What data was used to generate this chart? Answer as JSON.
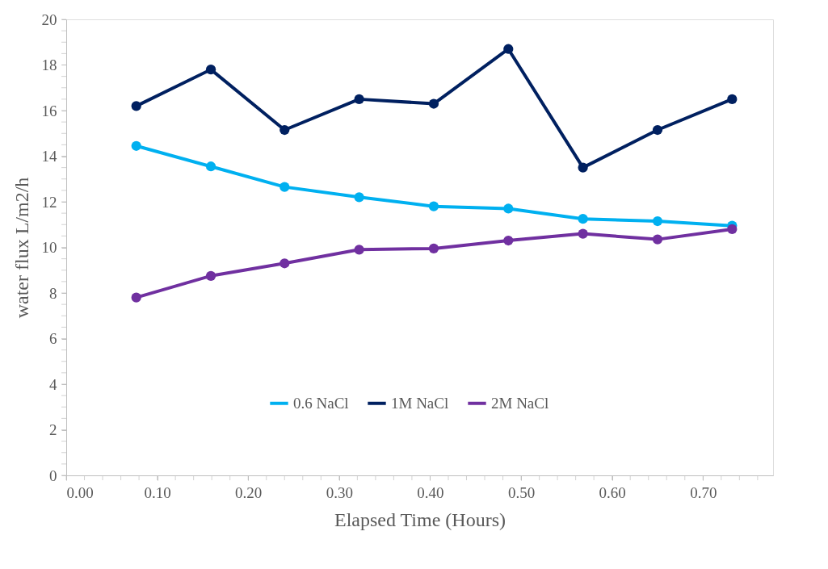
{
  "chart_data": {
    "type": "line",
    "xlabel": "Elapsed Time (Hours)",
    "ylabel": "water flux L/m2/h",
    "x": [
      0.077,
      0.159,
      0.24,
      0.322,
      0.404,
      0.486,
      0.568,
      0.65,
      0.732
    ],
    "series": [
      {
        "name": "0.6 NaCl",
        "color": "#00b0f0",
        "values": [
          14.45,
          13.55,
          12.65,
          12.2,
          11.8,
          11.7,
          11.25,
          11.15,
          10.95
        ]
      },
      {
        "name": "1M NaCl",
        "color": "#002060",
        "values": [
          16.2,
          17.8,
          15.15,
          16.5,
          16.3,
          18.7,
          13.5,
          15.15,
          16.5
        ]
      },
      {
        "name": "2M NaCl",
        "color": "#7030a0",
        "values": [
          7.8,
          8.75,
          9.3,
          9.9,
          9.95,
          10.3,
          10.6,
          10.35,
          10.8
        ]
      }
    ],
    "xlim": [
      0,
      0.777
    ],
    "xticks": [
      {
        "value": 0,
        "label": "0.00"
      },
      {
        "value": 0.1,
        "label": "0.10"
      },
      {
        "value": 0.2,
        "label": "0.20"
      },
      {
        "value": 0.3,
        "label": "0.30"
      },
      {
        "value": 0.4,
        "label": "0.40"
      },
      {
        "value": 0.5,
        "label": "0.50"
      },
      {
        "value": 0.6,
        "label": "0.60"
      },
      {
        "value": 0.7,
        "label": "0.70"
      }
    ],
    "ylim": [
      0,
      20
    ],
    "yticks": [
      0,
      2,
      4,
      6,
      8,
      10,
      12,
      14,
      16,
      18,
      20
    ],
    "grid": false,
    "legend": "bottom",
    "marker": "circle",
    "line_style": "solid"
  }
}
